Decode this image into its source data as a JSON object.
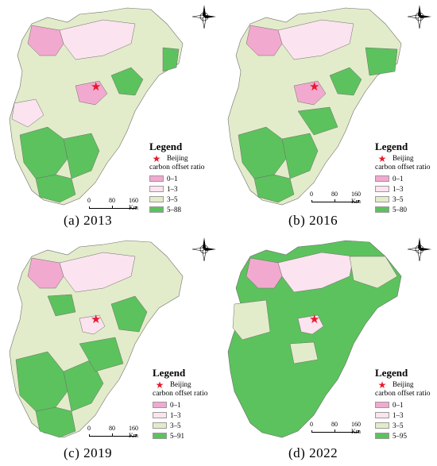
{
  "legend": {
    "title": "Legend",
    "beijing_label": "Beijing",
    "subtitle": "carbon offset ratio"
  },
  "colors": {
    "class_0_1": "#f2a9cf",
    "class_1_3": "#fbe3ef",
    "class_3_5": "#e3ecca",
    "class_5_max": "#5cc25d",
    "boundary": "#6e6e6e",
    "beijing_star": "#e8192c"
  },
  "scale": {
    "zero": "0",
    "mid": "80",
    "max": "160 Km"
  },
  "compass": {
    "n": "N",
    "s": "S",
    "e": "E",
    "w": "W"
  },
  "panels": [
    {
      "caption": "(a) 2013",
      "classes": [
        "0–1",
        "1–3",
        "3–5",
        "5–88"
      ]
    },
    {
      "caption": "(b) 2016",
      "classes": [
        "0–1",
        "1–3",
        "3–5",
        "5–80"
      ]
    },
    {
      "caption": "(c) 2019",
      "classes": [
        "0–1",
        "1–3",
        "3–5",
        "5–91"
      ]
    },
    {
      "caption": "(d) 2022",
      "classes": [
        "0–1",
        "1–3",
        "3–5",
        "5–95"
      ]
    }
  ],
  "map_icon": "beijing-tianjin-hebei-region-map"
}
